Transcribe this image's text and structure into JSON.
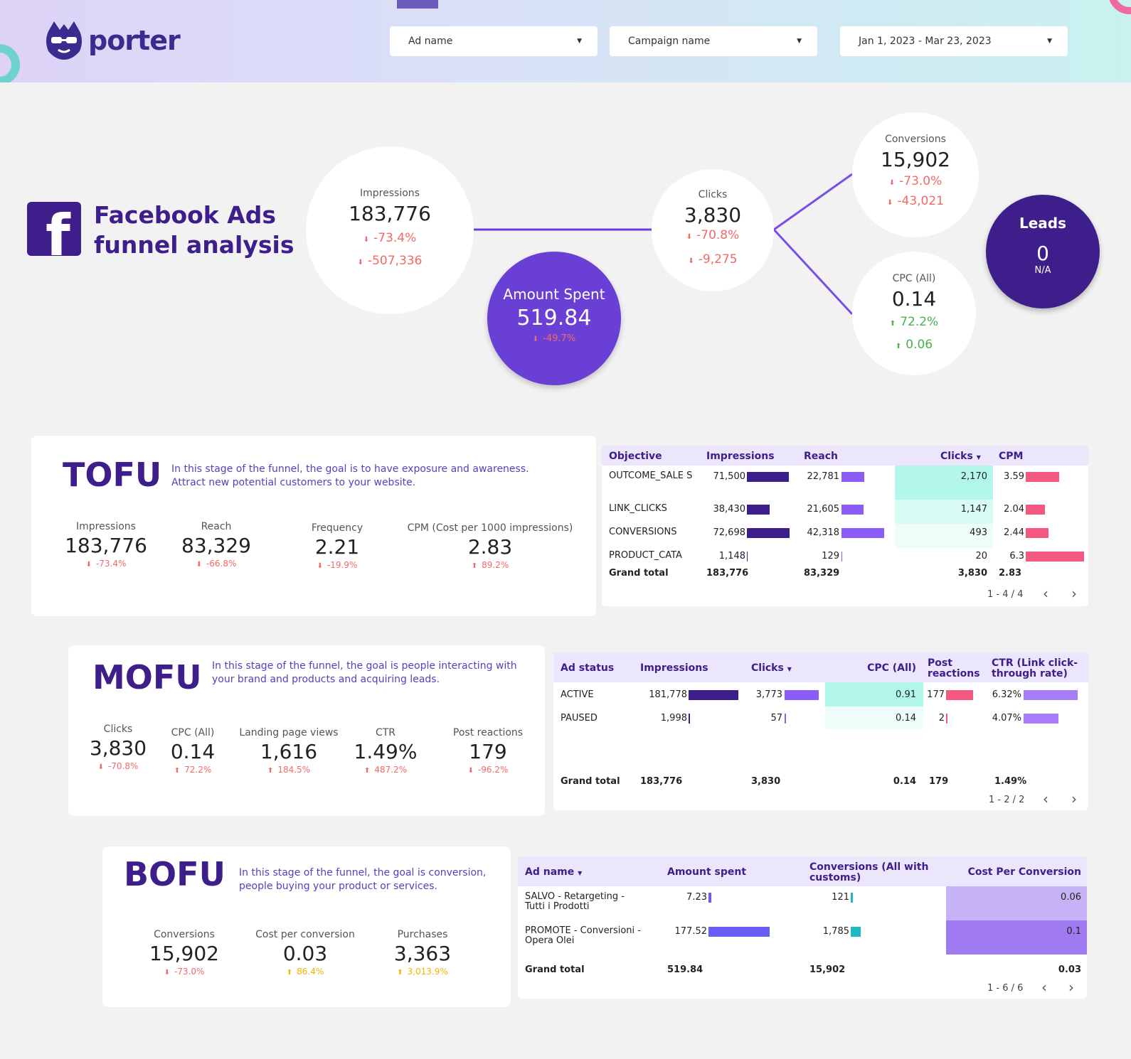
{
  "header": {
    "logo_text": "porter",
    "ad_name_filter": "Ad name",
    "campaign_filter": "Campaign name",
    "date_filter": "Jan 1, 2023 - Mar 23, 2023"
  },
  "title": {
    "line1": "Facebook Ads",
    "line2": "funnel analysis"
  },
  "funnel": {
    "impressions": {
      "label": "Impressions",
      "value": "183,776",
      "delta_pct": "-73.4%",
      "delta_abs": "-507,336"
    },
    "amount_spent": {
      "label": "Amount Spent",
      "value": "519.84",
      "delta_pct": "-49.7%"
    },
    "clicks": {
      "label": "Clicks",
      "value": "3,830",
      "delta_pct": "-70.8%",
      "delta_abs": "-9,275"
    },
    "conversions": {
      "label": "Conversions",
      "value": "15,902",
      "delta_pct": "-73.0%",
      "delta_abs": "-43,021"
    },
    "cpc": {
      "label": "CPC (All)",
      "value": "0.14",
      "delta_pct": "72.2%",
      "delta_abs": "0.06"
    },
    "leads": {
      "label": "Leads",
      "value": "0",
      "sub": "N/A"
    }
  },
  "tofu": {
    "title": "TOFU",
    "desc_line1": "In this stage of the funnel, the goal is to have exposure and awareness.",
    "desc_line2": "Attract new potential customers to your website.",
    "kpis": [
      {
        "label": "Impressions",
        "value": "183,776",
        "delta": "-73.4%"
      },
      {
        "label": "Reach",
        "value": "83,329",
        "delta": "-66.8%"
      },
      {
        "label": "Frequency",
        "value": "2.21",
        "delta": "-19.9%"
      },
      {
        "label": "CPM (Cost per 1000 impressions)",
        "value": "2.83",
        "delta": "89.2%"
      }
    ],
    "table": {
      "headers": [
        "Objective",
        "Impressions",
        "Reach",
        "Clicks",
        "CPM"
      ],
      "rows": [
        {
          "objective": "OUTCOME_SALE S",
          "impressions": "71,500",
          "impressions_n": 71500,
          "reach": "22,781",
          "reach_n": 22781,
          "clicks": "2,170",
          "cpm": "3.59",
          "cpm_n": 3.59
        },
        {
          "objective": "LINK_CLICKS",
          "impressions": "38,430",
          "impressions_n": 38430,
          "reach": "21,605",
          "reach_n": 21605,
          "clicks": "1,147",
          "cpm": "2.04",
          "cpm_n": 2.04
        },
        {
          "objective": "CONVERSIONS",
          "impressions": "72,698",
          "impressions_n": 72698,
          "reach": "42,318",
          "reach_n": 42318,
          "clicks": "493",
          "cpm": "2.44",
          "cpm_n": 2.44
        },
        {
          "objective": "PRODUCT_CATA",
          "impressions": "1,148",
          "impressions_n": 1148,
          "reach": "129",
          "reach_n": 129,
          "clicks": "20",
          "cpm": "6.3",
          "cpm_n": 6.3
        }
      ],
      "total": {
        "label": "Grand total",
        "impressions": "183,776",
        "reach": "83,329",
        "clicks": "3,830",
        "cpm": "2.83"
      },
      "pager": "1 - 4 / 4"
    }
  },
  "mofu": {
    "title": "MOFU",
    "desc_line1": "In this stage of the funnel, the goal is people interacting with",
    "desc_line2": "your brand and products and acquiring leads.",
    "kpis": [
      {
        "label": "Clicks",
        "value": "3,830",
        "delta": "-70.8%"
      },
      {
        "label": "CPC (All)",
        "value": "0.14",
        "delta": "72.2%"
      },
      {
        "label": "Landing page views",
        "value": "1,616",
        "delta": "184.5%"
      },
      {
        "label": "CTR",
        "value": "1.49%",
        "delta": "487.2%"
      },
      {
        "label": "Post reactions",
        "value": "179",
        "delta": "-96.2%"
      }
    ],
    "table": {
      "headers": [
        "Ad status",
        "Impressions",
        "Clicks",
        "CPC (All)",
        "Post reactions",
        "CTR (Link click-through rate)"
      ],
      "rows": [
        {
          "status": "ACTIVE",
          "impressions": "181,778",
          "impressions_n": 181778,
          "clicks": "3,773",
          "clicks_n": 3773,
          "cpc": "0.91",
          "post": "177",
          "post_n": 177,
          "ctr": "6.32%",
          "ctr_n": 6.32
        },
        {
          "status": "PAUSED",
          "impressions": "1,998",
          "impressions_n": 1998,
          "clicks": "57",
          "clicks_n": 57,
          "cpc": "0.14",
          "post": "2",
          "post_n": 2,
          "ctr": "4.07%",
          "ctr_n": 4.07
        }
      ],
      "total": {
        "label": "Grand total",
        "impressions": "183,776",
        "clicks": "3,830",
        "cpc": "0.14",
        "post": "179",
        "ctr": "1.49%"
      },
      "pager": "1 - 2 / 2"
    }
  },
  "bofu": {
    "title": "BOFU",
    "desc_line1": "In this stage of the funnel, the goal is conversion,",
    "desc_line2": "people buying your product or services.",
    "kpis": [
      {
        "label": "Conversions",
        "value": "15,902",
        "delta": "-73.0%"
      },
      {
        "label": "Cost per conversion",
        "value": "0.03",
        "delta": "86.4%"
      },
      {
        "label": "Purchases",
        "value": "3,363",
        "delta": "3,013.9%"
      }
    ],
    "table": {
      "headers": [
        "Ad name",
        "Amount spent",
        "Conversions (All with customs)",
        "Cost Per Conversion"
      ],
      "rows": [
        {
          "name1": "SALVO - Retargeting -",
          "name2": "Tutti i Prodotti",
          "spent": "7.23",
          "spent_n": 7.23,
          "conv": "121",
          "conv_n": 121,
          "cpconv": "0.06"
        },
        {
          "name1": "PROMOTE - Conversioni -",
          "name2": "Opera Olei",
          "spent": "177.52",
          "spent_n": 177.52,
          "conv": "1,785",
          "conv_n": 1785,
          "cpconv": "0.1"
        }
      ],
      "total": {
        "label": "Grand total",
        "spent": "519.84",
        "conv": "15,902",
        "cpconv": "0.03"
      },
      "pager": "1 - 6 / 6"
    }
  },
  "colors": {
    "primary": "#3d1e8a",
    "accent": "#6a3fd6",
    "bar_dark": "#3d1e8a",
    "bar_purple": "#8b5cf6",
    "bar_pink": "#f4577f",
    "teal": "#b6f6ec",
    "down": "#f06a6a",
    "up": "#4caf50"
  }
}
